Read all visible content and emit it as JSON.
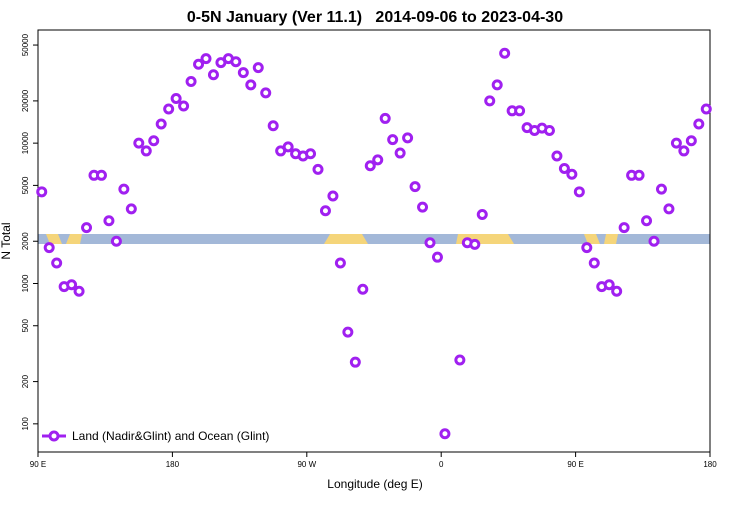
{
  "chart_data": {
    "type": "scatter",
    "title": "0-5N January (Ver 11.1)   2014-09-06 to 2023-04-30",
    "xlabel": "Longitude (deg E)",
    "ylabel": "N Total",
    "yscale": "log",
    "xlim": [
      90,
      540
    ],
    "ylim": [
      63,
      64000
    ],
    "xticks": [
      {
        "value": 90,
        "label": "90 E"
      },
      180,
      {
        "value": 270,
        "label": "90 W"
      },
      {
        "value": 360,
        "label": "0"
      },
      {
        "value": 450,
        "label": "90 E"
      },
      {
        "value": 540,
        "label": "180"
      }
    ],
    "yticks": [
      100,
      200,
      500,
      1000,
      2000,
      5000,
      10000,
      20000,
      50000
    ],
    "legend": "lower left",
    "series": [
      {
        "name": "Land (Nadir&Glint) and Ocean (Glint)",
        "color": "#a020f0",
        "x": [
          92.5,
          97.5,
          102.5,
          107.5,
          112.5,
          117.5,
          122.5,
          127.5,
          132.5,
          137.5,
          142.5,
          147.5,
          152.5,
          157.5,
          162.5,
          167.5,
          172.5,
          177.5,
          182.5,
          187.5,
          192.5,
          197.5,
          202.5,
          207.5,
          212.5,
          217.5,
          222.5,
          227.5,
          232.5,
          237.5,
          242.5,
          247.5,
          252.5,
          257.5,
          262.5,
          267.5,
          272.5,
          277.5,
          282.5,
          287.5,
          292.5,
          297.5,
          302.5,
          307.5,
          312.5,
          317.5,
          322.5,
          327.5,
          332.5,
          337.5,
          342.5,
          347.5,
          352.5,
          357.5,
          362.5,
          372.5,
          377.5,
          382.5,
          387.5,
          392.5,
          397.5,
          402.5,
          407.5,
          412.5,
          417.5,
          422.5,
          427.5,
          432.5,
          437.5,
          442.5,
          447.5,
          452.5,
          457.5,
          462.5,
          467.5,
          472.5,
          477.5,
          482.5,
          487.5,
          492.5,
          497.5,
          502.5,
          507.5,
          512.5,
          517.5,
          522.5,
          527.5,
          532.5,
          537.5
        ],
        "values": [
          4500,
          1800,
          1400,
          950,
          980,
          880,
          2500,
          5900,
          5900,
          2800,
          2000,
          4700,
          3400,
          10000,
          8800,
          10400,
          13700,
          17500,
          20800,
          18400,
          27500,
          36500,
          40000,
          30700,
          37500,
          40000,
          38000,
          31800,
          26000,
          34500,
          22800,
          13300,
          8800,
          9400,
          8400,
          8100,
          8400,
          6500,
          3300,
          4200,
          1400,
          450,
          275,
          910,
          6900,
          7600,
          15000,
          10600,
          8500,
          10900,
          4900,
          3500,
          1950,
          1540,
          85,
          285,
          1950,
          1900,
          3100,
          20000,
          26000,
          43700,
          17000,
          17000,
          12900,
          12300,
          12800,
          12300,
          8100,
          6600,
          6000,
          4500,
          1800,
          1400,
          950,
          980,
          880,
          2500,
          5900,
          5900,
          2800,
          2000,
          4700,
          3400,
          10000,
          8800,
          10400,
          13700,
          17500
        ]
      }
    ]
  }
}
